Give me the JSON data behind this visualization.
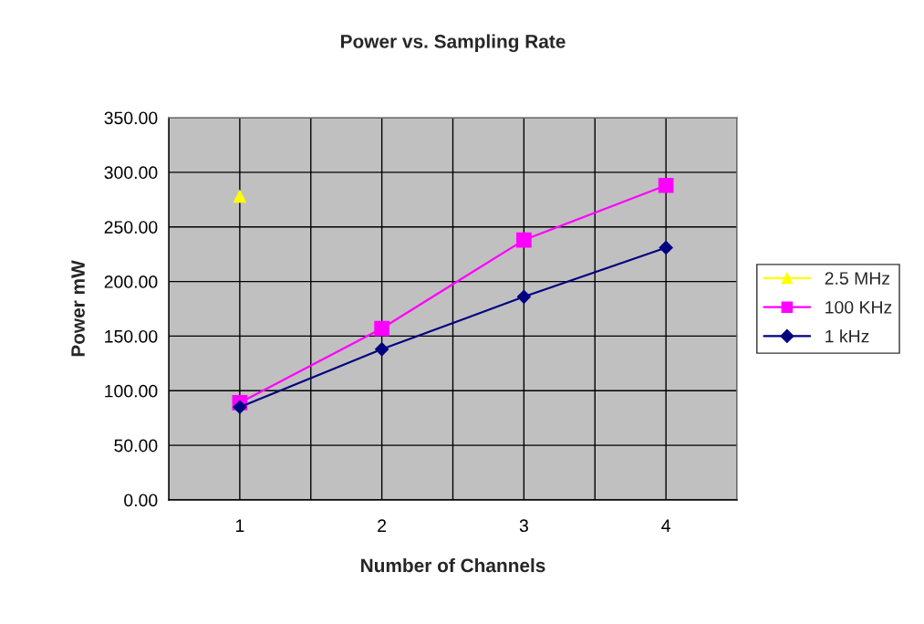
{
  "chart_data": {
    "type": "line",
    "title": "Power vs. Sampling Rate",
    "xlabel": "Number of Channels",
    "ylabel": "Power mW",
    "x": [
      1,
      2,
      3,
      4
    ],
    "series": [
      {
        "name": "2.5 MHz",
        "color": "#ffff00",
        "marker": "triangle",
        "values": [
          278,
          null,
          null,
          null
        ]
      },
      {
        "name": "100 KHz",
        "color": "#ff00ff",
        "marker": "square",
        "values": [
          89,
          157,
          238,
          288
        ]
      },
      {
        "name": "1 kHz",
        "color": "#000080",
        "marker": "diamond",
        "values": [
          85,
          138,
          186,
          231
        ]
      }
    ],
    "xlim": [
      0.5,
      4.5
    ],
    "xticks": [
      {
        "value": 0.5,
        "label": null
      },
      1,
      {
        "value": 1.5,
        "label": null
      },
      2,
      {
        "value": 2.5,
        "label": null
      },
      3,
      {
        "value": 3.5,
        "label": null
      },
      4,
      {
        "value": 4.5,
        "label": null
      }
    ],
    "ylim": [
      0,
      350
    ],
    "yticks": [
      {
        "value": 0,
        "label": "0.00"
      },
      {
        "value": 50,
        "label": "50.00"
      },
      {
        "value": 100,
        "label": "100.00"
      },
      {
        "value": 150,
        "label": "150.00"
      },
      {
        "value": 200,
        "label": "200.00"
      },
      {
        "value": 250,
        "label": "250.00"
      },
      {
        "value": 300,
        "label": "300.00"
      },
      {
        "value": 350,
        "label": "350.00"
      }
    ],
    "grid": true,
    "legend": "right",
    "line_style": "solid"
  }
}
